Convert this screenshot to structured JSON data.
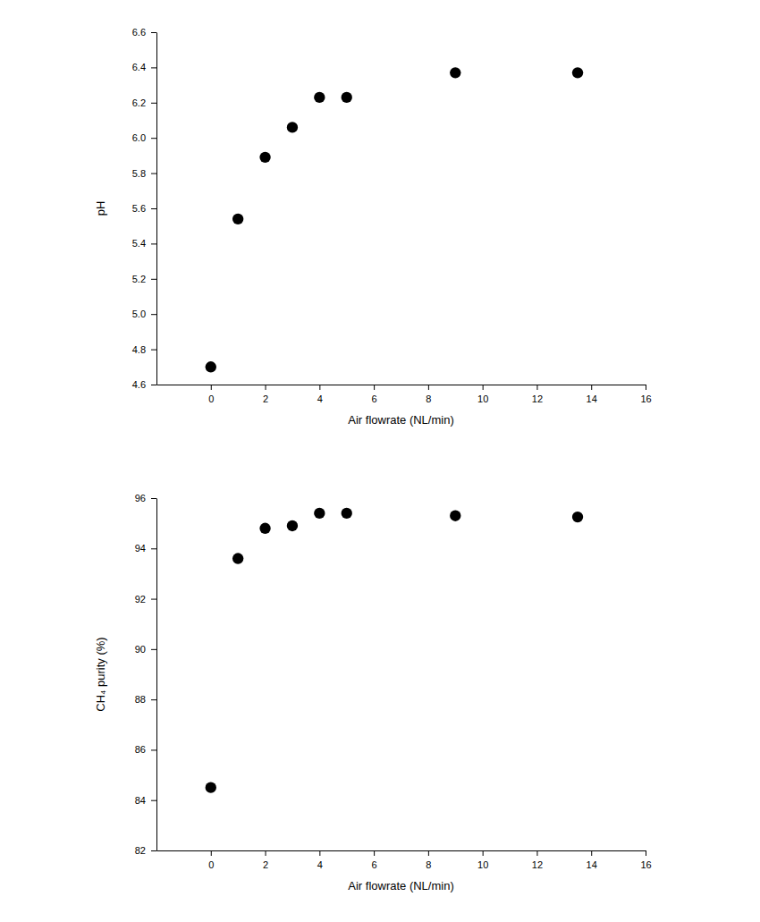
{
  "chart_data": [
    {
      "type": "scatter",
      "x": [
        0,
        1,
        2,
        3,
        4,
        5,
        9,
        13.5
      ],
      "values": [
        4.7,
        5.54,
        5.89,
        6.06,
        6.23,
        6.23,
        6.37,
        6.37
      ],
      "x_label": "Air flowrate (NL/min)",
      "y_label": "pH",
      "xlim": [
        -2,
        16
      ],
      "xticks": [
        0,
        2,
        4,
        6,
        8,
        10,
        12,
        14,
        16
      ],
      "ylim": [
        4.6,
        6.6
      ],
      "yticks": [
        4.6,
        4.8,
        {
          "value": 5,
          "label": "5.0"
        },
        5.2,
        5.4,
        5.6,
        5.8,
        {
          "value": 6,
          "label": "6.0"
        },
        6.2,
        6.4,
        6.6
      ],
      "color": "#000000",
      "marker": "circle"
    },
    {
      "type": "scatter",
      "x": [
        0,
        1,
        2,
        3,
        4,
        5,
        9,
        13.5
      ],
      "values": [
        84.5,
        93.6,
        94.8,
        94.9,
        95.4,
        95.4,
        95.3,
        95.25
      ],
      "x_label": "Air flowrate (NL/min)",
      "y_label": "CH₄ purity (%)",
      "xlim": [
        -2,
        16
      ],
      "xticks": [
        0,
        2,
        4,
        6,
        8,
        10,
        12,
        14,
        16
      ],
      "ylim": [
        82,
        96
      ],
      "yticks": [
        82,
        84,
        86,
        88,
        90,
        92,
        94,
        96
      ],
      "color": "#000000",
      "marker": "circle"
    }
  ]
}
